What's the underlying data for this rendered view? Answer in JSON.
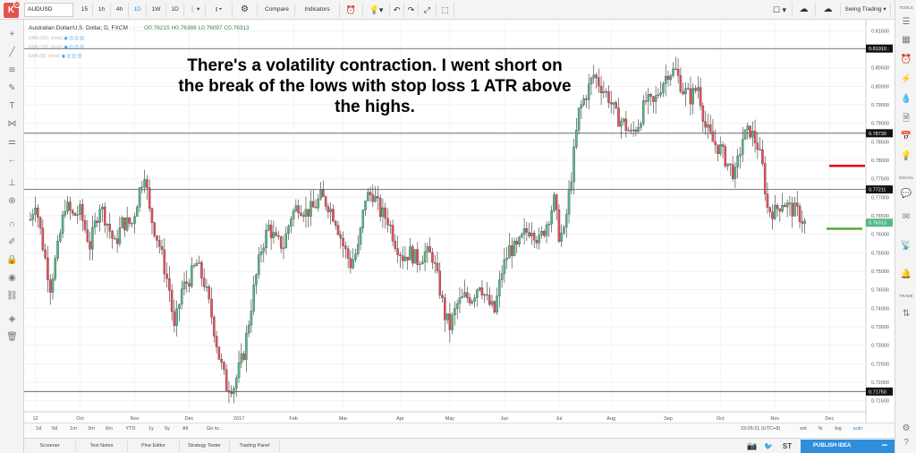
{
  "toolbar": {
    "symbol": "AUDUSD",
    "intervals": [
      "15",
      "1h",
      "4h",
      "1D",
      "1W",
      "1D"
    ],
    "compare": "Compare",
    "indicators": "Indicators",
    "layout_name": "Swing Trading",
    "logo_badge": "11"
  },
  "legend": {
    "title": "Australian Dollar/U.S. Dollar, D, FXCM",
    "open": "O0.76215",
    "high": "H0.76386",
    "low": "L0.76097",
    "close": "C0.76313",
    "ema1": "EMA (200, close)",
    "ema2": "EMA (100, close)",
    "ema3": "EMA (50, close)"
  },
  "annotation": "There's a volatility contraction. I went short on the break of the lows with stop loss 1 ATR above the highs.",
  "rightbar": {
    "tools": "TOOLS",
    "social": "SOCIAL",
    "trade": "TRADE"
  },
  "bottom": {
    "ranges": [
      "1d",
      "5d",
      "1m",
      "3m",
      "6m",
      "YTD",
      "1y",
      "5y",
      "All",
      "Go to..."
    ],
    "time": "15:05:21 (UTC+8)",
    "opts": [
      "ext",
      "%",
      "log",
      "auto"
    ]
  },
  "panels": {
    "tabs": [
      "Screener",
      "Text Notes",
      "Pine Editor",
      "Strategy Tester",
      "Trading Panel"
    ],
    "publish": "PUBLISH IDEA",
    "st": "ST"
  },
  "chart_data": {
    "type": "candlestick",
    "title": "Australian Dollar/U.S. Dollar, D, FXCM",
    "ylim": [
      0.7125,
      0.8175
    ],
    "y_ticks": [
      0.715,
      0.72,
      0.725,
      0.73,
      0.735,
      0.74,
      0.745,
      0.75,
      0.755,
      0.76,
      0.765,
      0.77,
      0.775,
      0.78,
      0.785,
      0.79,
      0.795,
      0.8,
      0.805,
      0.81,
      0.815
    ],
    "x_ticks": [
      {
        "label": "12",
        "i": 2
      },
      {
        "label": "Oct",
        "i": 20
      },
      {
        "label": "Nov",
        "i": 42
      },
      {
        "label": "Dec",
        "i": 64
      },
      {
        "label": "2017",
        "i": 84
      },
      {
        "label": "Feb",
        "i": 106
      },
      {
        "label": "Mar",
        "i": 126
      },
      {
        "label": "Apr",
        "i": 149
      },
      {
        "label": "May",
        "i": 169
      },
      {
        "label": "Jun",
        "i": 191
      },
      {
        "label": "Jul",
        "i": 213
      },
      {
        "label": "Aug",
        "i": 234
      },
      {
        "label": "Sep",
        "i": 257
      },
      {
        "label": "Oct",
        "i": 278
      },
      {
        "label": "Nov",
        "i": 300
      },
      {
        "label": "Dec",
        "i": 322
      }
    ],
    "horizontal_levels": [
      0.81019,
      0.7873,
      0.77211,
      0.7175
    ],
    "level_labels": [
      "0.81019",
      "0.78730",
      "0.77211",
      "0.71750"
    ],
    "last_price": 0.76313,
    "last_price_label": "0.76313",
    "stop_loss_level": 0.7785,
    "target_level": 0.7615,
    "anchors": [
      [
        0,
        0.764
      ],
      [
        2,
        0.769
      ],
      [
        5,
        0.757
      ],
      [
        8,
        0.746
      ],
      [
        11,
        0.756
      ],
      [
        14,
        0.768
      ],
      [
        17,
        0.765
      ],
      [
        20,
        0.766
      ],
      [
        24,
        0.757
      ],
      [
        28,
        0.768
      ],
      [
        31,
        0.763
      ],
      [
        34,
        0.757
      ],
      [
        37,
        0.763
      ],
      [
        41,
        0.763
      ],
      [
        44,
        0.772
      ],
      [
        46,
        0.777
      ],
      [
        48,
        0.766
      ],
      [
        52,
        0.757
      ],
      [
        56,
        0.745
      ],
      [
        58,
        0.734
      ],
      [
        61,
        0.745
      ],
      [
        64,
        0.748
      ],
      [
        67,
        0.752
      ],
      [
        70,
        0.747
      ],
      [
        73,
        0.738
      ],
      [
        76,
        0.727
      ],
      [
        79,
        0.719
      ],
      [
        82,
        0.719
      ],
      [
        86,
        0.728
      ],
      [
        90,
        0.745
      ],
      [
        93,
        0.756
      ],
      [
        96,
        0.762
      ],
      [
        99,
        0.758
      ],
      [
        102,
        0.757
      ],
      [
        105,
        0.765
      ],
      [
        108,
        0.768
      ],
      [
        111,
        0.766
      ],
      [
        114,
        0.767
      ],
      [
        117,
        0.77
      ],
      [
        120,
        0.768
      ],
      [
        123,
        0.764
      ],
      [
        126,
        0.757
      ],
      [
        129,
        0.752
      ],
      [
        132,
        0.756
      ],
      [
        135,
        0.77
      ],
      [
        138,
        0.771
      ],
      [
        141,
        0.766
      ],
      [
        144,
        0.764
      ],
      [
        147,
        0.758
      ],
      [
        150,
        0.754
      ],
      [
        153,
        0.755
      ],
      [
        156,
        0.753
      ],
      [
        159,
        0.755
      ],
      [
        162,
        0.754
      ],
      [
        165,
        0.745
      ],
      [
        167,
        0.738
      ],
      [
        169,
        0.735
      ],
      [
        172,
        0.741
      ],
      [
        175,
        0.743
      ],
      [
        178,
        0.743
      ],
      [
        181,
        0.747
      ],
      [
        184,
        0.742
      ],
      [
        187,
        0.739
      ],
      [
        190,
        0.75
      ],
      [
        193,
        0.756
      ],
      [
        196,
        0.756
      ],
      [
        199,
        0.76
      ],
      [
        202,
        0.762
      ],
      [
        205,
        0.758
      ],
      [
        208,
        0.763
      ],
      [
        211,
        0.769
      ],
      [
        213,
        0.76
      ],
      [
        215,
        0.76
      ],
      [
        218,
        0.776
      ],
      [
        221,
        0.793
      ],
      [
        224,
        0.798
      ],
      [
        227,
        0.803
      ],
      [
        230,
        0.8
      ],
      [
        233,
        0.797
      ],
      [
        236,
        0.792
      ],
      [
        239,
        0.79
      ],
      [
        242,
        0.787
      ],
      [
        245,
        0.79
      ],
      [
        248,
        0.796
      ],
      [
        251,
        0.795
      ],
      [
        254,
        0.8
      ],
      [
        257,
        0.804
      ],
      [
        260,
        0.804
      ],
      [
        263,
        0.799
      ],
      [
        266,
        0.797
      ],
      [
        269,
        0.8
      ],
      [
        272,
        0.789
      ],
      [
        275,
        0.785
      ],
      [
        278,
        0.783
      ],
      [
        281,
        0.779
      ],
      [
        284,
        0.776
      ],
      [
        287,
        0.786
      ],
      [
        290,
        0.788
      ],
      [
        293,
        0.784
      ],
      [
        295,
        0.778
      ],
      [
        297,
        0.767
      ],
      [
        300,
        0.766
      ],
      [
        303,
        0.769
      ],
      [
        306,
        0.767
      ],
      [
        309,
        0.766
      ],
      [
        312,
        0.763
      ]
    ]
  }
}
